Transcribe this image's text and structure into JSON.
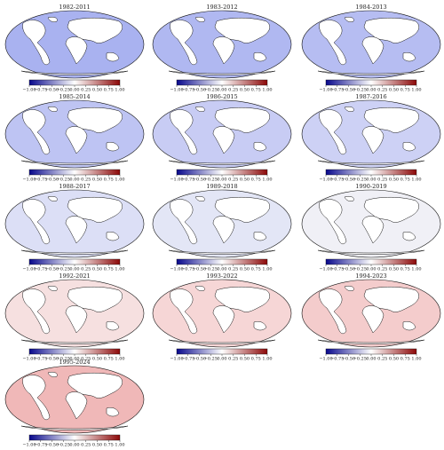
{
  "colorbar": {
    "ticks": [
      {
        "value": -1,
        "label": "−1.00"
      },
      {
        "value": -0.75,
        "label": "−0.75"
      },
      {
        "value": -0.5,
        "label": "−0.50"
      },
      {
        "value": -0.25,
        "label": "−0.25"
      },
      {
        "value": 0,
        "label": "0.00"
      },
      {
        "value": 0.25,
        "label": "0.25"
      },
      {
        "value": 0.5,
        "label": "0.50"
      },
      {
        "value": 0.75,
        "label": "0.75"
      },
      {
        "value": 1,
        "label": "1.00"
      }
    ],
    "range": [
      -1,
      1
    ],
    "colors": [
      "#08088c",
      "#ffffff",
      "#8c0808"
    ]
  },
  "panels": [
    {
      "title": "1982-2011",
      "tint": "#a9b2f0"
    },
    {
      "title": "1983-2012",
      "tint": "#b0b8f1"
    },
    {
      "title": "1984-2013",
      "tint": "#b6bdf2"
    },
    {
      "title": "1985-2014",
      "tint": "#bec4f3"
    },
    {
      "title": "1986-2015",
      "tint": "#c8ccf4"
    },
    {
      "title": "1987-2016",
      "tint": "#cdd1f5"
    },
    {
      "title": "1988-2017",
      "tint": "#dcdff6"
    },
    {
      "title": "1989-2018",
      "tint": "#e3e6f6"
    },
    {
      "title": "1990-2019",
      "tint": "#f0f0f6"
    },
    {
      "title": "1992-2021",
      "tint": "#f6e0e0"
    },
    {
      "title": "1993-2022",
      "tint": "#f6d6d6"
    },
    {
      "title": "1994-2023",
      "tint": "#f4cccc"
    },
    {
      "title": "1995-2024",
      "tint": "#f0b8b8"
    }
  ]
}
